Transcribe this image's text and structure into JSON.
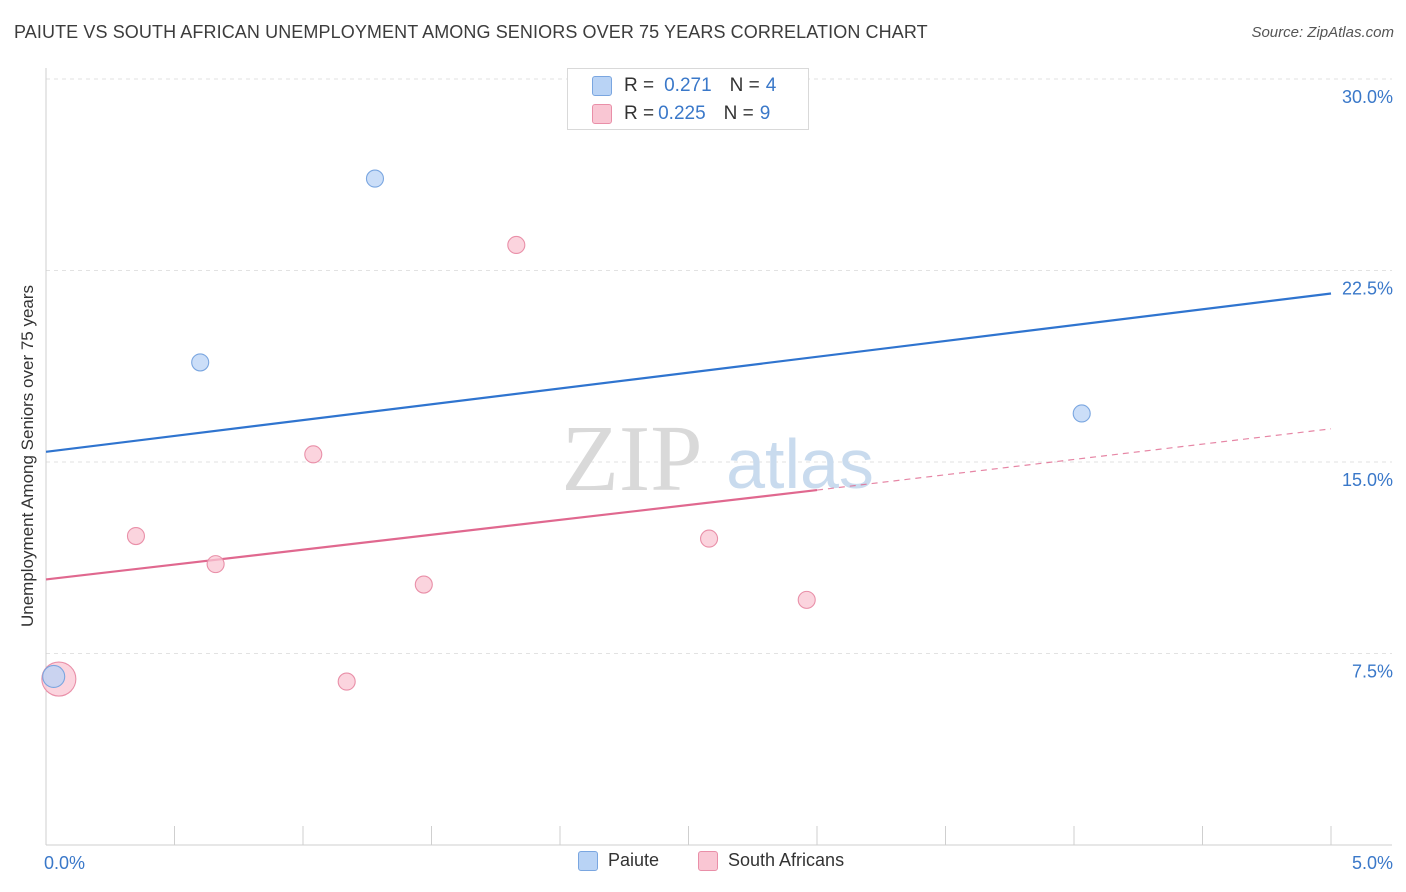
{
  "title": "PAIUTE VS SOUTH AFRICAN UNEMPLOYMENT AMONG SENIORS OVER 75 YEARS CORRELATION CHART",
  "source": "Source: ZipAtlas.com",
  "watermark": {
    "zip": "ZIP",
    "atlas": "atlas"
  },
  "colors": {
    "paiute_fill": "#b9d3f5",
    "paiute_stroke": "#7aa6e0",
    "paiute_line": "#2f74cf",
    "sa_fill": "#f9c6d3",
    "sa_stroke": "#e98fa8",
    "sa_line": "#e0688f",
    "tick_text": "#3a78c9"
  },
  "stats": [
    {
      "r_label": "R = ",
      "r_value": "0.271",
      "n_label": "N = ",
      "n_value": "4",
      "series": "Paiute"
    },
    {
      "r_label": "R = ",
      "r_value": "0.225",
      "n_label": "N = ",
      "n_value": "9",
      "series": "South Africans"
    }
  ],
  "chart_data": {
    "type": "scatter",
    "title": "PAIUTE VS SOUTH AFRICAN UNEMPLOYMENT AMONG SENIORS OVER 75 YEARS CORRELATION CHART",
    "xlabel": "",
    "ylabel": "Unemployment Among Seniors over 75 years",
    "xlim": [
      0,
      5.0
    ],
    "ylim": [
      0,
      30.0
    ],
    "x_tick_labels": [
      "0.0%",
      "5.0%"
    ],
    "y_ticks": [
      7.5,
      15.0,
      22.5,
      30.0
    ],
    "y_tick_labels": [
      "7.5%",
      "15.0%",
      "22.5%",
      "30.0%"
    ],
    "grid": true,
    "legend": "bottom-center",
    "series": [
      {
        "name": "Paiute",
        "points": [
          {
            "x": 0.03,
            "y": 6.6,
            "size": "medium"
          },
          {
            "x": 0.6,
            "y": 18.9
          },
          {
            "x": 1.28,
            "y": 26.1
          },
          {
            "x": 4.03,
            "y": 16.9
          }
        ],
        "trend": {
          "x0": 0.0,
          "y0": 15.4,
          "x1": 5.0,
          "y1": 21.6,
          "dashed_to": null
        }
      },
      {
        "name": "South Africans",
        "points": [
          {
            "x": 0.05,
            "y": 6.5,
            "size": "large"
          },
          {
            "x": 0.35,
            "y": 12.1
          },
          {
            "x": 0.66,
            "y": 11.0
          },
          {
            "x": 1.04,
            "y": 15.3
          },
          {
            "x": 1.17,
            "y": 6.4
          },
          {
            "x": 1.47,
            "y": 10.2
          },
          {
            "x": 1.83,
            "y": 23.5
          },
          {
            "x": 2.58,
            "y": 12.0
          },
          {
            "x": 2.96,
            "y": 9.6
          }
        ],
        "trend": {
          "x0": 0.0,
          "y0": 10.4,
          "x1": 3.0,
          "y1": 13.9,
          "dashed_to": {
            "x": 5.0,
            "y": 16.3
          }
        }
      }
    ]
  }
}
